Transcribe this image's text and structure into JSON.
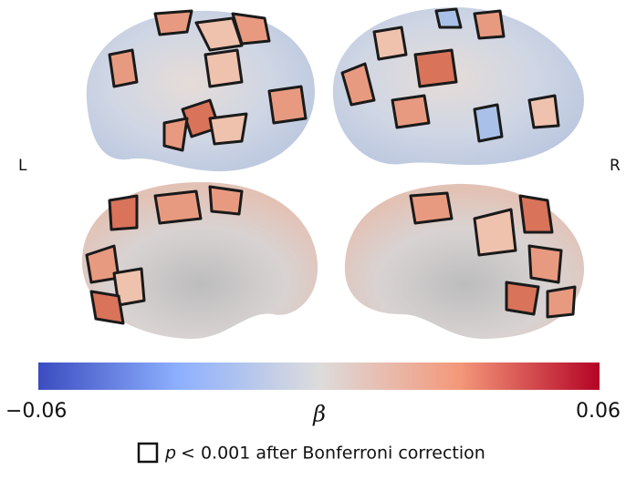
{
  "hemispheres": {
    "left": "L",
    "right": "R"
  },
  "colorbar": {
    "label": "β",
    "min": {
      "value": -0.06,
      "label": "−0.06"
    },
    "max": {
      "value": 0.06,
      "label": "0.06"
    }
  },
  "legend": {
    "symbol": "p",
    "text": "< 0.001 after Bonferroni correction"
  }
}
